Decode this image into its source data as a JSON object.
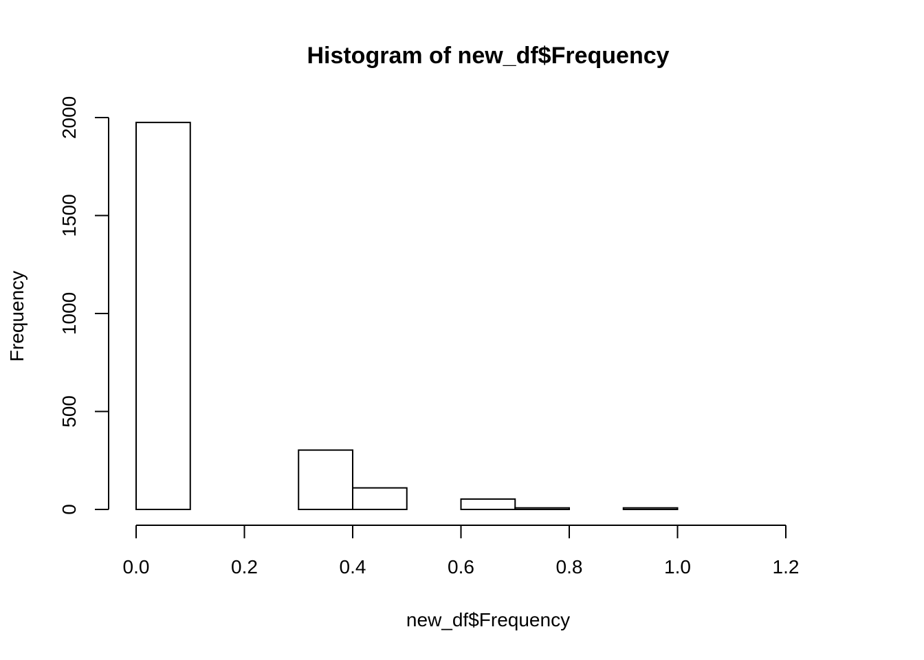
{
  "chart_data": {
    "type": "bar",
    "title": "Histogram of new_df$Frequency",
    "xlabel": "new_df$Frequency",
    "ylabel": "Frequency",
    "xlim": [
      0,
      1.3
    ],
    "ylim": [
      0,
      2000
    ],
    "grid": false,
    "legend": "none",
    "bin_edges": [
      0.0,
      0.1,
      0.2,
      0.3,
      0.4,
      0.5,
      0.6,
      0.7,
      0.8,
      0.9,
      1.0,
      1.1,
      1.2,
      1.3
    ],
    "values": [
      1975,
      0,
      0,
      303,
      110,
      0,
      53,
      8,
      0,
      8,
      0,
      0,
      0
    ],
    "x_ticks": [
      0.0,
      0.2,
      0.4,
      0.6,
      0.8,
      1.0,
      1.2
    ],
    "x_tick_labels": [
      "0.0",
      "0.2",
      "0.4",
      "0.6",
      "0.8",
      "1.0",
      "1.2"
    ],
    "y_ticks": [
      0,
      500,
      1000,
      1500,
      2000
    ],
    "y_tick_labels": [
      "0",
      "500",
      "1000",
      "1500",
      "2000"
    ]
  },
  "colors": {
    "bar_fill": "#ffffff",
    "bar_stroke": "#000000",
    "axis": "#000000",
    "background": "#ffffff"
  }
}
